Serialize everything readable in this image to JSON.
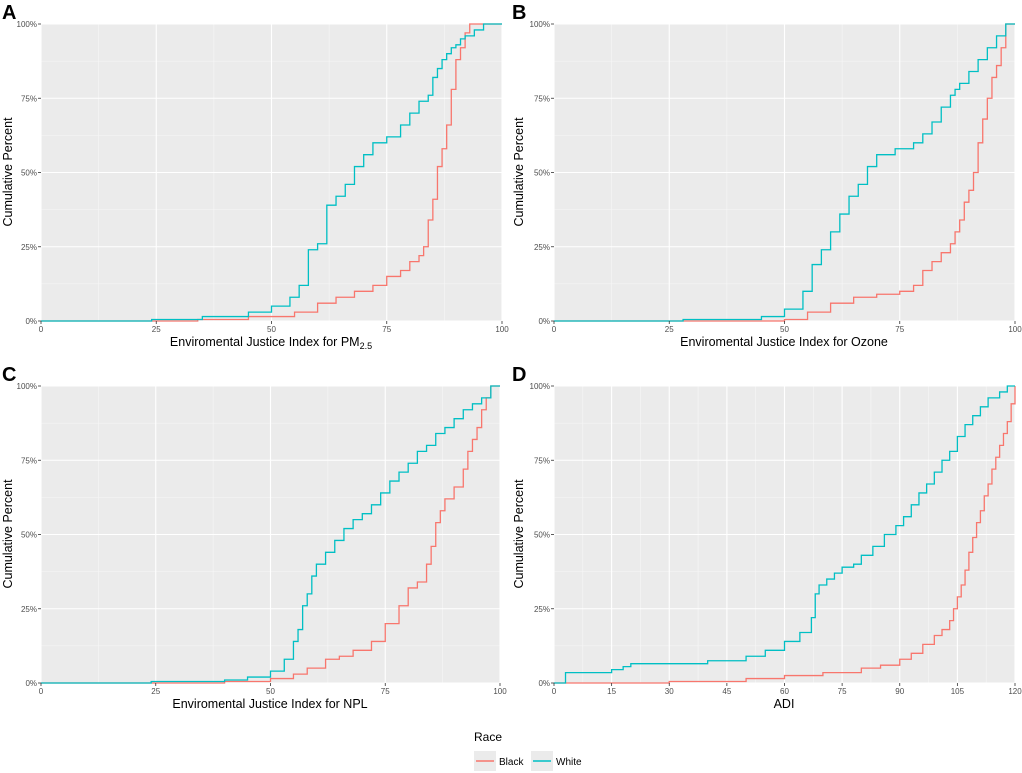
{
  "figure": {
    "legend": {
      "title": "Race",
      "entries": [
        {
          "label": "Black",
          "color": "#F8766D"
        },
        {
          "label": "White",
          "color": "#00BFC4"
        }
      ]
    }
  },
  "chart_data": [
    {
      "panel": "A",
      "type": "line",
      "step": true,
      "xlabel": "Enviromental Justice Index for PM",
      "xlabel_sub": "2.5",
      "ylabel": "Cumulative Percent",
      "xlim": [
        0,
        100
      ],
      "ylim": [
        0,
        100
      ],
      "xticks": [
        0,
        25,
        50,
        75,
        100
      ],
      "yticks": [
        0,
        25,
        50,
        75,
        100
      ],
      "ytick_labels": [
        "0%",
        "25%",
        "50%",
        "75%",
        "100%"
      ],
      "series": [
        {
          "name": "Black",
          "color": "#F8766D",
          "x": [
            0,
            34,
            45,
            55,
            60,
            64,
            68,
            72,
            75,
            78,
            80,
            82,
            83,
            84,
            85,
            86,
            87,
            88,
            89,
            90,
            91,
            92,
            93,
            94,
            95,
            100
          ],
          "y": [
            0,
            0.5,
            1.5,
            3,
            6,
            8,
            10,
            12,
            15,
            17,
            20,
            22,
            25,
            34,
            41,
            52,
            58,
            66,
            78,
            88,
            92,
            97,
            100,
            100,
            100,
            100
          ]
        },
        {
          "name": "White",
          "color": "#00BFC4",
          "x": [
            0,
            24,
            35,
            45,
            50,
            54,
            56,
            58,
            60,
            62,
            64,
            66,
            68,
            70,
            72,
            75,
            78,
            80,
            82,
            84,
            85,
            86,
            87,
            88,
            89,
            90,
            91,
            92,
            94,
            96,
            100
          ],
          "y": [
            0,
            0.5,
            1.5,
            3,
            5,
            8,
            12,
            24,
            26,
            39,
            42,
            46,
            52,
            56,
            60,
            62,
            66,
            70,
            74,
            76,
            82,
            85,
            88,
            90,
            92,
            93,
            95,
            96,
            98,
            100,
            100
          ]
        }
      ]
    },
    {
      "panel": "B",
      "type": "line",
      "step": true,
      "xlabel": "Enviromental Justice Index for Ozone",
      "ylabel": "Cumulative Percent",
      "xlim": [
        0,
        100
      ],
      "ylim": [
        0,
        100
      ],
      "xticks": [
        0,
        25,
        50,
        75,
        100
      ],
      "yticks": [
        0,
        25,
        50,
        75,
        100
      ],
      "ytick_labels": [
        "0%",
        "25%",
        "50%",
        "75%",
        "100%"
      ],
      "series": [
        {
          "name": "Black",
          "color": "#F8766D",
          "x": [
            0,
            50,
            55,
            60,
            65,
            70,
            75,
            78,
            80,
            82,
            84,
            86,
            87,
            88,
            89,
            90,
            91,
            92,
            93,
            94,
            95,
            96,
            97,
            98,
            100
          ],
          "y": [
            0,
            0.5,
            3,
            6,
            8,
            9,
            10,
            12,
            17,
            20,
            23,
            26,
            30,
            34,
            40,
            44,
            50,
            60,
            68,
            75,
            82,
            86,
            92,
            100,
            100
          ]
        },
        {
          "name": "White",
          "color": "#00BFC4",
          "x": [
            0,
            28,
            45,
            50,
            54,
            56,
            58,
            60,
            62,
            64,
            66,
            68,
            70,
            74,
            78,
            80,
            82,
            84,
            86,
            87,
            88,
            90,
            92,
            94,
            96,
            98,
            100
          ],
          "y": [
            0,
            0.5,
            1.5,
            4,
            10,
            19,
            24,
            30,
            36,
            42,
            46,
            52,
            56,
            58,
            60,
            63,
            67,
            72,
            76,
            78,
            80,
            84,
            88,
            92,
            96,
            100,
            100
          ]
        }
      ]
    },
    {
      "panel": "C",
      "type": "line",
      "step": true,
      "xlabel": "Enviromental Justice Index for NPL",
      "ylabel": "Cumulative Percent",
      "xlim": [
        0,
        100
      ],
      "ylim": [
        0,
        100
      ],
      "xticks": [
        0,
        25,
        50,
        75,
        100
      ],
      "yticks": [
        0,
        25,
        50,
        75,
        100
      ],
      "ytick_labels": [
        "0%",
        "25%",
        "50%",
        "75%",
        "100%"
      ],
      "series": [
        {
          "name": "Black",
          "color": "#F8766D",
          "x": [
            0,
            40,
            50,
            55,
            58,
            62,
            65,
            68,
            72,
            75,
            78,
            80,
            82,
            84,
            85,
            86,
            87,
            88,
            90,
            92,
            93,
            94,
            95,
            96,
            97,
            98,
            100
          ],
          "y": [
            0,
            0.5,
            1.5,
            3,
            5,
            8,
            9,
            11,
            14,
            20,
            26,
            32,
            34,
            40,
            46,
            54,
            58,
            62,
            66,
            72,
            78,
            82,
            86,
            92,
            96,
            100,
            100
          ]
        },
        {
          "name": "White",
          "color": "#00BFC4",
          "x": [
            0,
            24,
            40,
            45,
            50,
            53,
            55,
            56,
            57,
            58,
            59,
            60,
            62,
            64,
            66,
            68,
            70,
            72,
            74,
            76,
            78,
            80,
            82,
            84,
            86,
            88,
            90,
            92,
            94,
            96,
            98,
            100
          ],
          "y": [
            0,
            0.5,
            1,
            2,
            4,
            8,
            14,
            18,
            26,
            30,
            36,
            40,
            44,
            48,
            52,
            55,
            57,
            60,
            64,
            68,
            71,
            74,
            78,
            80,
            84,
            86,
            89,
            92,
            94,
            96,
            100,
            100
          ]
        }
      ]
    },
    {
      "panel": "D",
      "type": "line",
      "step": true,
      "xlabel": "ADI",
      "ylabel": "Cumulative Percent",
      "xlim": [
        0,
        120
      ],
      "ylim": [
        0,
        100
      ],
      "xticks": [
        0,
        15,
        30,
        45,
        60,
        75,
        90,
        105,
        120
      ],
      "yticks": [
        0,
        25,
        50,
        75,
        100
      ],
      "ytick_labels": [
        "0%",
        "25%",
        "50%",
        "75%",
        "100%"
      ],
      "series": [
        {
          "name": "Black",
          "color": "#F8766D",
          "x": [
            0,
            30,
            50,
            60,
            70,
            80,
            85,
            90,
            93,
            96,
            99,
            101,
            103,
            104,
            105,
            106,
            107,
            108,
            109,
            110,
            111,
            112,
            113,
            114,
            115,
            116,
            117,
            118,
            119,
            120
          ],
          "y": [
            0,
            0.5,
            1.5,
            2.5,
            3.5,
            5,
            6,
            8,
            10,
            13,
            16,
            18,
            21,
            25,
            29,
            33,
            38,
            44,
            49,
            54,
            58,
            63,
            67,
            72,
            76,
            80,
            84,
            88,
            94,
            100
          ]
        },
        {
          "name": "White",
          "color": "#00BFC4",
          "x": [
            0,
            3,
            15,
            18,
            20,
            40,
            50,
            55,
            60,
            64,
            67,
            68,
            69,
            71,
            73,
            75,
            78,
            80,
            83,
            86,
            89,
            91,
            93,
            95,
            97,
            99,
            101,
            103,
            105,
            107,
            109,
            111,
            113,
            116,
            118,
            120
          ],
          "y": [
            0,
            3.5,
            4.5,
            5.5,
            6.5,
            7.5,
            9,
            11,
            14,
            17,
            22,
            30,
            33,
            35,
            37,
            39,
            40,
            43,
            46,
            50,
            53,
            56,
            60,
            64,
            67,
            71,
            75,
            78,
            83,
            87,
            90,
            93,
            96,
            98,
            100,
            100
          ]
        }
      ]
    }
  ]
}
